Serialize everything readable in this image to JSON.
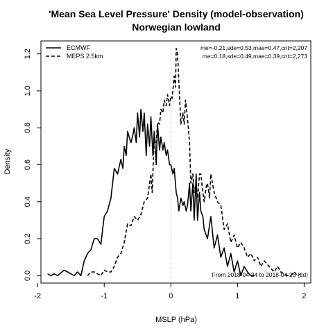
{
  "chart_data": {
    "type": "line",
    "title": "'Mean Sea Level Pressure' Density (model-observation)",
    "subtitle": "Norwegian lowland",
    "xlabel": "MSLP (hPa)",
    "ylabel": "Density",
    "xlim": [
      -1.95,
      2.1
    ],
    "ylim": [
      -0.04,
      1.27
    ],
    "xticks": [
      -2,
      -1,
      0,
      1,
      2
    ],
    "xtick_labels": [
      "-2",
      "-1",
      "0",
      "1",
      "2"
    ],
    "yticks": [
      0.0,
      0.2,
      0.4,
      0.6,
      0.8,
      1.0,
      1.2
    ],
    "ytick_labels": [
      "0.0",
      "0.2",
      "0.4",
      "0.6",
      "0.8",
      "1.0",
      "1.2"
    ],
    "reference_line_x": 0,
    "grid": false,
    "legend_placement": "top-left",
    "series": [
      {
        "name": "ECMWF",
        "stats": "me=-0.21,sde=0.53,mae=0.47,cnt=2,207",
        "line_style": "solid",
        "color": "#000000",
        "x": [
          -1.85,
          -1.8,
          -1.75,
          -1.7,
          -1.6,
          -1.55,
          -1.5,
          -1.45,
          -1.4,
          -1.35,
          -1.3,
          -1.25,
          -1.2,
          -1.15,
          -1.1,
          -1.05,
          -1.0,
          -0.95,
          -0.9,
          -0.85,
          -0.8,
          -0.75,
          -0.72,
          -0.7,
          -0.67,
          -0.65,
          -0.6,
          -0.57,
          -0.55,
          -0.52,
          -0.5,
          -0.47,
          -0.45,
          -0.42,
          -0.4,
          -0.37,
          -0.35,
          -0.32,
          -0.3,
          -0.27,
          -0.25,
          -0.22,
          -0.2,
          -0.17,
          -0.15,
          -0.12,
          -0.1,
          -0.07,
          -0.05,
          -0.02,
          0.0,
          0.03,
          0.05,
          0.08,
          0.1,
          0.12,
          0.15,
          0.18,
          0.2,
          0.23,
          0.25,
          0.28,
          0.3,
          0.33,
          0.35,
          0.38,
          0.4,
          0.43,
          0.45,
          0.48,
          0.5,
          0.55,
          0.6,
          0.65,
          0.7,
          0.75,
          0.8,
          0.85,
          0.9,
          0.95,
          1.0,
          1.05,
          1.1,
          1.15,
          1.2,
          1.25
        ],
        "y": [
          0.01,
          0.0,
          0.01,
          0.0,
          0.03,
          0.02,
          0.01,
          0.0,
          0.02,
          0.0,
          0.08,
          0.12,
          0.14,
          0.2,
          0.2,
          0.17,
          0.32,
          0.35,
          0.42,
          0.58,
          0.55,
          0.63,
          0.58,
          0.7,
          0.65,
          0.78,
          0.72,
          0.76,
          0.8,
          0.72,
          0.88,
          0.75,
          0.9,
          0.78,
          0.88,
          0.65,
          0.82,
          0.7,
          0.86,
          0.65,
          0.78,
          0.6,
          0.82,
          0.68,
          0.75,
          0.68,
          0.72,
          0.65,
          0.68,
          0.6,
          0.6,
          0.55,
          0.58,
          0.45,
          0.42,
          0.35,
          0.42,
          0.38,
          0.4,
          0.35,
          0.38,
          0.5,
          0.35,
          0.5,
          0.3,
          0.55,
          0.3,
          0.45,
          0.35,
          0.32,
          0.25,
          0.2,
          0.32,
          0.15,
          0.22,
          0.1,
          0.15,
          0.05,
          0.12,
          0.02,
          0.08,
          0.0,
          0.05,
          0.02,
          0.0,
          0.0
        ]
      },
      {
        "name": "MEPS 2.5km",
        "stats": "me=0.18,sde=0.49,mae=0.39,cnt=2,273",
        "line_style": "dashed",
        "color": "#000000",
        "x": [
          -1.25,
          -1.2,
          -1.15,
          -1.1,
          -1.05,
          -1.0,
          -0.95,
          -0.9,
          -0.85,
          -0.8,
          -0.75,
          -0.7,
          -0.65,
          -0.6,
          -0.55,
          -0.5,
          -0.45,
          -0.4,
          -0.35,
          -0.3,
          -0.28,
          -0.25,
          -0.22,
          -0.2,
          -0.17,
          -0.15,
          -0.12,
          -0.1,
          -0.07,
          -0.05,
          -0.02,
          0.0,
          0.02,
          0.05,
          0.07,
          0.08,
          0.1,
          0.12,
          0.15,
          0.18,
          0.2,
          0.22,
          0.25,
          0.28,
          0.3,
          0.33,
          0.35,
          0.38,
          0.4,
          0.43,
          0.45,
          0.48,
          0.5,
          0.53,
          0.55,
          0.58,
          0.6,
          0.65,
          0.7,
          0.75,
          0.8,
          0.85,
          0.9,
          0.95,
          1.0,
          1.05,
          1.1,
          1.15,
          1.2,
          1.25,
          1.3,
          1.35,
          1.4,
          1.45,
          1.5,
          1.55,
          1.6,
          1.65,
          1.7,
          1.75,
          1.8,
          1.85,
          1.9,
          1.95
        ],
        "y": [
          0.0,
          0.02,
          0.02,
          0.01,
          0.0,
          0.03,
          0.02,
          0.02,
          0.05,
          0.1,
          0.12,
          0.18,
          0.28,
          0.27,
          0.32,
          0.3,
          0.33,
          0.4,
          0.42,
          0.55,
          0.45,
          0.75,
          0.72,
          0.83,
          0.82,
          0.9,
          0.88,
          0.95,
          0.92,
          0.98,
          0.92,
          0.97,
          0.96,
          1.08,
          1.02,
          1.23,
          1.2,
          1.05,
          0.82,
          0.88,
          0.82,
          0.95,
          0.85,
          0.72,
          0.5,
          0.55,
          0.45,
          0.5,
          0.42,
          0.55,
          0.55,
          0.45,
          0.4,
          0.48,
          0.5,
          0.42,
          0.55,
          0.45,
          0.4,
          0.38,
          0.25,
          0.28,
          0.18,
          0.22,
          0.15,
          0.18,
          0.15,
          0.1,
          0.12,
          0.08,
          0.1,
          0.05,
          0.08,
          0.06,
          0.04,
          0.02,
          0.05,
          0.02,
          0.01,
          0.0,
          0.0,
          0.02,
          0.0,
          0.01
        ]
      }
    ],
    "annotation": "From 2018-04-24 to 2018-04-25 (2d)"
  }
}
